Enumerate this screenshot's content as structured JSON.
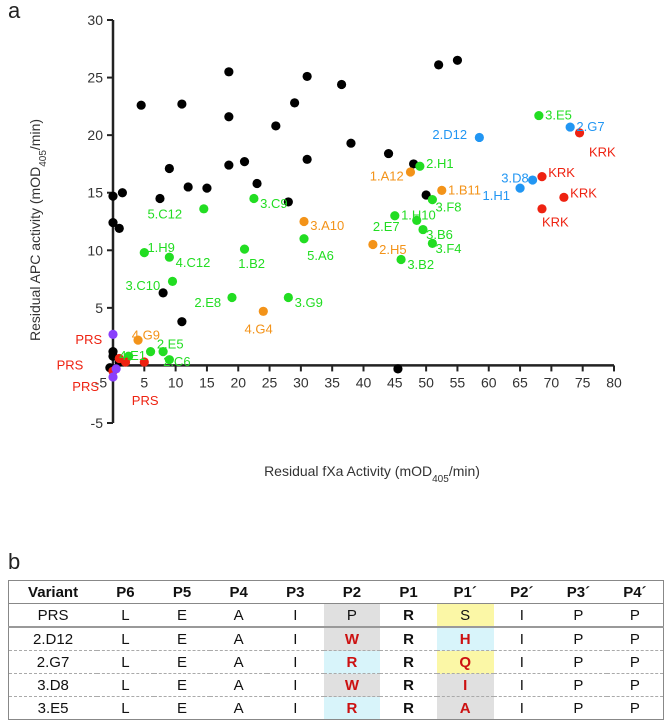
{
  "panels": {
    "a": "a",
    "b": "b"
  },
  "chart_data": {
    "type": "scatter",
    "xlabel_pre": "Residual fXa Activity (mOD",
    "xlabel_sub": "405",
    "xlabel_post": "/min)",
    "ylabel_pre": "Residual APC activity (mOD",
    "ylabel_sub": "405",
    "ylabel_post": "/min)",
    "xlim": [
      0,
      80
    ],
    "ylim": [
      -5,
      30
    ],
    "x_ticks": [
      "-5",
      "5",
      "10",
      "15",
      "20",
      "25",
      "30",
      "35",
      "40",
      "45",
      "50",
      "55",
      "60",
      "65",
      "70",
      "75",
      "80"
    ],
    "y_ticks": [
      "-5",
      "5",
      "10",
      "15",
      "20",
      "25",
      "30"
    ],
    "colors": {
      "black": "#000000",
      "green": "#22dd22",
      "orange": "#f39319",
      "blue": "#2196f3",
      "red": "#ee2211",
      "purple": "#8a3ffc"
    },
    "series": [
      {
        "name": "unlabeled",
        "color": "#000000",
        "points": [
          [
            0,
            14.7
          ],
          [
            1.5,
            15
          ],
          [
            0,
            12.4
          ],
          [
            1,
            11.9
          ],
          [
            4.5,
            22.6
          ],
          [
            9,
            17.1
          ],
          [
            11,
            22.7
          ],
          [
            7.5,
            14.5
          ],
          [
            12,
            15.5
          ],
          [
            15,
            15.4
          ],
          [
            18.5,
            17.4
          ],
          [
            21,
            17.7
          ],
          [
            18.5,
            21.6
          ],
          [
            18.5,
            25.5
          ],
          [
            23,
            15.8
          ],
          [
            26,
            20.8
          ],
          [
            28,
            14.2
          ],
          [
            29,
            22.8
          ],
          [
            31,
            25.1
          ],
          [
            31,
            17.9
          ],
          [
            36.5,
            24.4
          ],
          [
            38,
            19.3
          ],
          [
            44,
            18.4
          ],
          [
            48,
            17.5
          ],
          [
            50,
            14.8
          ],
          [
            52,
            26.1
          ],
          [
            55,
            26.5
          ],
          [
            8,
            6.3
          ],
          [
            11,
            3.8
          ],
          [
            0,
            1.2
          ],
          [
            0,
            0.8
          ],
          [
            45.5,
            -0.3
          ],
          [
            1,
            0.3
          ],
          [
            -0.5,
            -0.2
          ]
        ]
      },
      {
        "name": "green",
        "color": "#22dd22",
        "points": [
          [
            14.5,
            13.6
          ],
          [
            22.5,
            14.5
          ],
          [
            5,
            9.8
          ],
          [
            9,
            9.4
          ],
          [
            21,
            10.1
          ],
          [
            30.5,
            11.0
          ],
          [
            9.5,
            7.3
          ],
          [
            19,
            5.9
          ],
          [
            28,
            5.9
          ],
          [
            49,
            17.3
          ],
          [
            45,
            13.0
          ],
          [
            48.5,
            12.6
          ],
          [
            51,
            14.4
          ],
          [
            49.5,
            11.8
          ],
          [
            51,
            10.6
          ],
          [
            46,
            9.2
          ],
          [
            68,
            21.7
          ],
          [
            6,
            1.2
          ],
          [
            8,
            1.2
          ],
          [
            9,
            0.5
          ],
          [
            2.5,
            0.8
          ]
        ]
      },
      {
        "name": "orange",
        "color": "#f39319",
        "points": [
          [
            47.5,
            16.8
          ],
          [
            52.5,
            15.2
          ],
          [
            30.5,
            12.5
          ],
          [
            41.5,
            10.5
          ],
          [
            24,
            4.7
          ],
          [
            4,
            2.2
          ]
        ]
      },
      {
        "name": "blue",
        "color": "#2196f3",
        "points": [
          [
            58.5,
            19.8
          ],
          [
            73,
            20.7
          ],
          [
            67,
            16.1
          ],
          [
            65,
            15.4
          ]
        ]
      },
      {
        "name": "red",
        "color": "#ee2211",
        "points": [
          [
            74.5,
            20.2
          ],
          [
            68.5,
            16.4
          ],
          [
            72,
            14.6
          ],
          [
            68.5,
            13.6
          ],
          [
            1,
            0.6
          ],
          [
            2,
            0.3
          ],
          [
            0,
            -0.5
          ],
          [
            5,
            0.3
          ]
        ]
      },
      {
        "name": "purple",
        "color": "#8a3ffc",
        "points": [
          [
            0,
            2.7
          ],
          [
            0,
            -1.0
          ],
          [
            0.5,
            -0.3
          ]
        ]
      }
    ],
    "annotations": [
      {
        "text": "3.E5",
        "color": "#22dd22",
        "x": 69,
        "y": 21.8
      },
      {
        "text": "2.G7",
        "color": "#2196f3",
        "x": 74,
        "y": 20.8
      },
      {
        "text": "KRK",
        "color": "#ee2211",
        "x": 76,
        "y": 18.6
      },
      {
        "text": "2.D12",
        "color": "#2196f3",
        "x": 51,
        "y": 20.1
      },
      {
        "text": "2.H1",
        "color": "#22dd22",
        "x": 50,
        "y": 17.6
      },
      {
        "text": "1.A12",
        "color": "#f39319",
        "x": 41,
        "y": 16.5
      },
      {
        "text": "1.B11",
        "color": "#f39319",
        "x": 53.5,
        "y": 15.3
      },
      {
        "text": "3.D8",
        "color": "#2196f3",
        "x": 62,
        "y": 16.3
      },
      {
        "text": "KRK",
        "color": "#ee2211",
        "x": 69.5,
        "y": 16.8
      },
      {
        "text": "1.H1",
        "color": "#2196f3",
        "x": 59,
        "y": 14.8
      },
      {
        "text": "KRK",
        "color": "#ee2211",
        "x": 73,
        "y": 15.0
      },
      {
        "text": "KRK",
        "color": "#ee2211",
        "x": 68.5,
        "y": 12.5
      },
      {
        "text": "3.F8",
        "color": "#22dd22",
        "x": 51.5,
        "y": 13.8
      },
      {
        "text": "1.H10",
        "color": "#22dd22",
        "x": 46,
        "y": 13.1
      },
      {
        "text": "2.E7",
        "color": "#22dd22",
        "x": 41.5,
        "y": 12.1
      },
      {
        "text": "3.B6",
        "color": "#22dd22",
        "x": 50,
        "y": 11.4
      },
      {
        "text": "3.F4",
        "color": "#22dd22",
        "x": 51.5,
        "y": 10.2
      },
      {
        "text": "3.B2",
        "color": "#22dd22",
        "x": 47,
        "y": 8.8
      },
      {
        "text": "2.H5",
        "color": "#f39319",
        "x": 42.5,
        "y": 10.1
      },
      {
        "text": "5.C12",
        "color": "#22dd22",
        "x": 5.5,
        "y": 13.2
      },
      {
        "text": "3.C9",
        "color": "#22dd22",
        "x": 23.5,
        "y": 14.1
      },
      {
        "text": "3.A10",
        "color": "#f39319",
        "x": 31.5,
        "y": 12.2
      },
      {
        "text": "1.H9",
        "color": "#22dd22",
        "x": 5.5,
        "y": 10.3
      },
      {
        "text": "4.C12",
        "color": "#22dd22",
        "x": 10,
        "y": 9.0
      },
      {
        "text": "1.B2",
        "color": "#22dd22",
        "x": 20,
        "y": 8.9
      },
      {
        "text": "5.A6",
        "color": "#22dd22",
        "x": 31,
        "y": 9.6
      },
      {
        "text": "3.C10",
        "color": "#22dd22",
        "x": 2,
        "y": 7.0
      },
      {
        "text": "2.E8",
        "color": "#22dd22",
        "x": 13,
        "y": 5.5
      },
      {
        "text": "3.G9",
        "color": "#22dd22",
        "x": 29,
        "y": 5.5
      },
      {
        "text": "4.G4",
        "color": "#f39319",
        "x": 21,
        "y": 3.2
      },
      {
        "text": "4.G9",
        "color": "#f39319",
        "x": 3,
        "y": 2.7
      },
      {
        "text": "PRS",
        "color": "#ee2211",
        "x": -6,
        "y": 2.3
      },
      {
        "text": "4.E1",
        "color": "#22dd22",
        "x": 1,
        "y": 0.9
      },
      {
        "text": "2.E5",
        "color": "#22dd22",
        "x": 7,
        "y": 1.9
      },
      {
        "text": "2.C6",
        "color": "#22dd22",
        "x": 8,
        "y": 0.4
      },
      {
        "text": "PRS",
        "color": "#ee2211",
        "x": -9,
        "y": 0.1
      },
      {
        "text": "PRS",
        "color": "#ee2211",
        "x": -6.5,
        "y": -1.8
      },
      {
        "text": "PRS",
        "color": "#ee2211",
        "x": 3,
        "y": -3.0
      }
    ]
  },
  "table": {
    "headers": [
      "Variant",
      "P6",
      "P5",
      "P4",
      "P3",
      "P2",
      "P1",
      "P1´",
      "P2´",
      "P3´",
      "P4´"
    ],
    "rows": [
      [
        "PRS",
        "L",
        "E",
        "A",
        "I",
        "P",
        "R",
        "S",
        "I",
        "P",
        "P"
      ],
      [
        "2.D12",
        "L",
        "E",
        "A",
        "I",
        "W",
        "R",
        "H",
        "I",
        "P",
        "P"
      ],
      [
        "2.G7",
        "L",
        "E",
        "A",
        "I",
        "R",
        "R",
        "Q",
        "I",
        "P",
        "P"
      ],
      [
        "3.D8",
        "L",
        "E",
        "A",
        "I",
        "W",
        "R",
        "I",
        "I",
        "P",
        "P"
      ],
      [
        "3.E5",
        "L",
        "E",
        "A",
        "I",
        "R",
        "R",
        "A",
        "I",
        "P",
        "P"
      ]
    ]
  }
}
